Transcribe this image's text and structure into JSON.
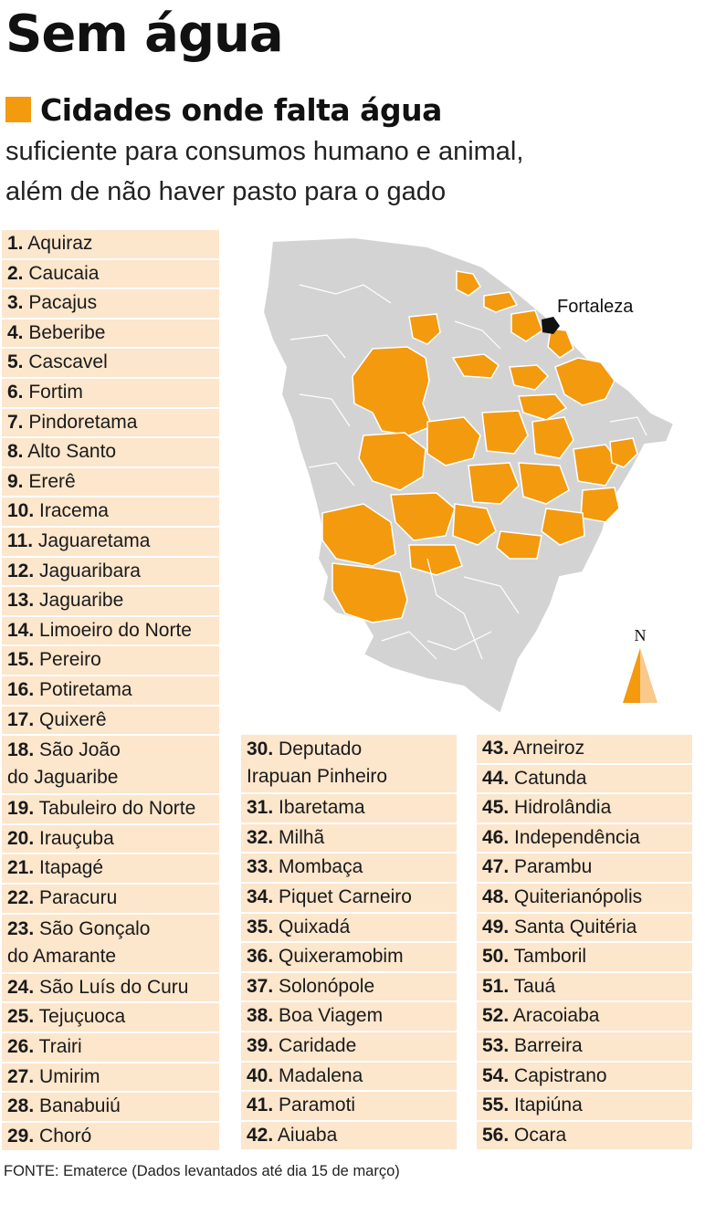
{
  "title": "Sem água",
  "legend": {
    "label": "Cidades onde falta água",
    "color": "#F39A0F"
  },
  "description": [
    "suficiente para consumos humano e animal,",
    "além de não haver pasto para o gado"
  ],
  "cities": [
    {
      "num": "1.",
      "name": "Aquiraz"
    },
    {
      "num": "2.",
      "name": "Caucaia"
    },
    {
      "num": "3.",
      "name": "Pacajus"
    },
    {
      "num": "4.",
      "name": "Beberibe"
    },
    {
      "num": "5.",
      "name": "Cascavel"
    },
    {
      "num": "6.",
      "name": "Fortim"
    },
    {
      "num": "7.",
      "name": "Pindoretama"
    },
    {
      "num": "8.",
      "name": "Alto Santo"
    },
    {
      "num": "9.",
      "name": "Ererê"
    },
    {
      "num": "10.",
      "name": "Iracema"
    },
    {
      "num": "11.",
      "name": "Jaguaretama"
    },
    {
      "num": "12.",
      "name": "Jaguaribara"
    },
    {
      "num": "13.",
      "name": "Jaguaribe"
    },
    {
      "num": "14.",
      "name": "Limoeiro do Norte"
    },
    {
      "num": "15.",
      "name": "Pereiro"
    },
    {
      "num": "16.",
      "name": "Potiretama"
    },
    {
      "num": "17.",
      "name": "Quixerê"
    },
    {
      "num": "18.",
      "name": "São João",
      "name2": "do Jaguaribe"
    },
    {
      "num": "19.",
      "name": "Tabuleiro do Norte"
    },
    {
      "num": "20.",
      "name": "Irauçuba"
    },
    {
      "num": "21.",
      "name": "Itapagé"
    },
    {
      "num": "22.",
      "name": "Paracuru"
    },
    {
      "num": "23.",
      "name": "São Gonçalo",
      "name2": "do Amarante"
    },
    {
      "num": "24.",
      "name": "São Luís do Curu"
    },
    {
      "num": "25.",
      "name": "Tejuçuoca"
    },
    {
      "num": "26.",
      "name": "Trairi"
    },
    {
      "num": "27.",
      "name": "Umirim"
    },
    {
      "num": "28.",
      "name": "Banabuiú"
    },
    {
      "num": "29.",
      "name": "Choró"
    },
    {
      "num": "30.",
      "name": "Deputado",
      "name2": "Irapuan Pinheiro"
    },
    {
      "num": "31.",
      "name": "Ibaretama"
    },
    {
      "num": "32.",
      "name": "Milhã"
    },
    {
      "num": "33.",
      "name": "Mombaça"
    },
    {
      "num": "34.",
      "name": "Piquet Carneiro"
    },
    {
      "num": "35.",
      "name": "Quixadá"
    },
    {
      "num": "36.",
      "name": "Quixeramobim"
    },
    {
      "num": "37.",
      "name": "Solonópole"
    },
    {
      "num": "38.",
      "name": "Boa Viagem"
    },
    {
      "num": "39.",
      "name": "Caridade"
    },
    {
      "num": "40.",
      "name": "Madalena"
    },
    {
      "num": "41.",
      "name": "Paramoti"
    },
    {
      "num": "42.",
      "name": "Aiuaba"
    },
    {
      "num": "43.",
      "name": "Arneiroz"
    },
    {
      "num": "44.",
      "name": "Catunda"
    },
    {
      "num": "45.",
      "name": "Hidrolândia"
    },
    {
      "num": "46.",
      "name": "Independência"
    },
    {
      "num": "47.",
      "name": "Parambu"
    },
    {
      "num": "48.",
      "name": "Quiterianópolis"
    },
    {
      "num": "49.",
      "name": "Santa Quitéria"
    },
    {
      "num": "50.",
      "name": "Tamboril"
    },
    {
      "num": "51.",
      "name": "Tauá"
    },
    {
      "num": "52.",
      "name": "Aracoiaba"
    },
    {
      "num": "53.",
      "name": "Barreira"
    },
    {
      "num": "54.",
      "name": "Capistrano"
    },
    {
      "num": "55.",
      "name": "Itapiúna"
    },
    {
      "num": "56.",
      "name": "Ocara"
    }
  ],
  "map": {
    "capital_label": "Fortaleza",
    "compass_label": "N",
    "colors": {
      "affected": "#F39A0F",
      "other": "#D3D3D3",
      "border": "#ffffff",
      "capital": "#111111",
      "compass_light": "#F8C98A"
    }
  },
  "source": "FONTE: Ematerce (Dados levantados até dia 15 de março)"
}
